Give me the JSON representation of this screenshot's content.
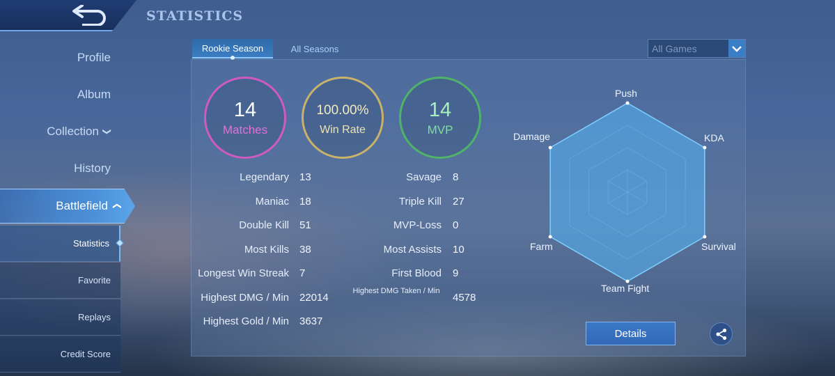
{
  "header": {
    "title": "STATISTICS",
    "back_icon": "back-arrow-icon"
  },
  "sidebar": {
    "items": [
      {
        "label": "Profile"
      },
      {
        "label": "Album"
      },
      {
        "label": "Collection",
        "chevron": "chevron-down-icon"
      },
      {
        "label": "History"
      },
      {
        "label": "Battlefield",
        "chevron": "chevron-up-icon",
        "active": true
      }
    ],
    "sub_items": [
      {
        "label": "Statistics",
        "active": true
      },
      {
        "label": "Favorite"
      },
      {
        "label": "Replays"
      },
      {
        "label": "Credit Score"
      }
    ]
  },
  "tabs": [
    {
      "label": "Rookie Season",
      "active": true
    },
    {
      "label": "All Seasons",
      "active": false
    }
  ],
  "filter": {
    "selected": "All Games"
  },
  "summary": {
    "matches": {
      "value": "14",
      "label": "Matches",
      "color": "#cf5bc0"
    },
    "win_rate": {
      "value": "100.00%",
      "label": "Win Rate",
      "color": "#c9b36a"
    },
    "mvp": {
      "value": "14",
      "label": "MVP",
      "color": "#4fb36a"
    }
  },
  "stats_left": [
    {
      "label": "Legendary",
      "value": "13"
    },
    {
      "label": "Maniac",
      "value": "18"
    },
    {
      "label": "Double Kill",
      "value": "51"
    },
    {
      "label": "Most Kills",
      "value": "38"
    },
    {
      "label": "Longest Win Streak",
      "value": "7"
    },
    {
      "label": "Highest DMG / Min",
      "value": "22014"
    },
    {
      "label": "Highest Gold / Min",
      "value": "3637"
    }
  ],
  "stats_right": [
    {
      "label": "Savage",
      "value": "8"
    },
    {
      "label": "Triple Kill",
      "value": "27"
    },
    {
      "label": "MVP-Loss",
      "value": "0"
    },
    {
      "label": "Most Assists",
      "value": "10"
    },
    {
      "label": "First Blood",
      "value": "9"
    },
    {
      "label": "Highest DMG Taken / Min",
      "value": "4578"
    }
  ],
  "radar": {
    "axes": [
      "Push",
      "KDA",
      "Survival",
      "Team Fight",
      "Farm",
      "Damage"
    ],
    "values": [
      1,
      1,
      1,
      1,
      1,
      1
    ]
  },
  "actions": {
    "details_label": "Details",
    "share_icon": "share-icon"
  },
  "colors": {
    "accent": "#3d78c8",
    "panel": "#5c7aa8"
  }
}
